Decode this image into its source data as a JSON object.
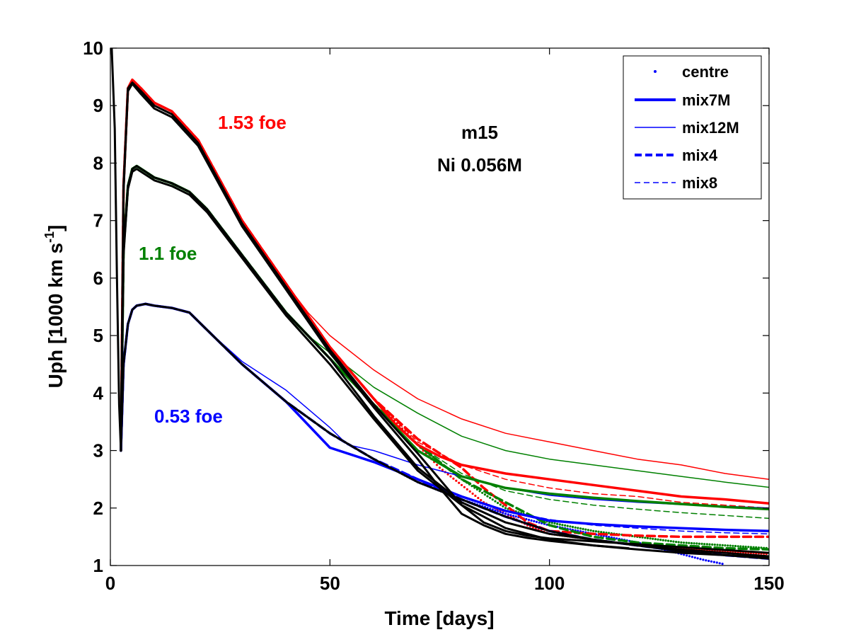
{
  "colors": {
    "red": "#ff0000",
    "green": "#008000",
    "blue": "#0000ff",
    "black": "#000000"
  },
  "chart_data": {
    "type": "line",
    "title": "",
    "xlabel": "Time [days]",
    "ylabel_main": "Uph [1000 km s",
    "ylabel_exp": "-1",
    "ylabel_close": "]",
    "xlim": [
      0,
      150
    ],
    "ylim": [
      1,
      10
    ],
    "xticks": [
      0,
      50,
      100,
      150
    ],
    "yticks": [
      1,
      2,
      3,
      4,
      5,
      6,
      7,
      8,
      9,
      10
    ],
    "annotations": {
      "red": "1.53 foe",
      "green": "1.1 foe",
      "blue": "0.53 foe",
      "model": "m15",
      "nickel": "Ni 0.056M"
    },
    "legend": [
      {
        "label": "centre",
        "style": "dots"
      },
      {
        "label": "mix7M",
        "style": "thick-solid"
      },
      {
        "label": "mix12M",
        "style": "thin-solid"
      },
      {
        "label": "mix4",
        "style": "thick-dashed"
      },
      {
        "label": "mix8",
        "style": "thin-dashed"
      }
    ],
    "series": [
      {
        "name": "1.53 foe centre",
        "color": "red",
        "style": "dots",
        "x": [
          2.4,
          3,
          4,
          5,
          7,
          10,
          14,
          20,
          30,
          40,
          50,
          60,
          70,
          75,
          80,
          85,
          90,
          95,
          100,
          110,
          120,
          130,
          140,
          150
        ],
        "y": [
          3.0,
          7.5,
          9.3,
          9.45,
          9.3,
          9.05,
          8.9,
          8.4,
          7.0,
          5.9,
          4.8,
          3.9,
          3.1,
          2.7,
          2.4,
          2.1,
          1.9,
          1.7,
          1.55,
          1.45,
          1.35,
          1.3,
          1.25,
          1.2
        ]
      },
      {
        "name": "1.53 foe mix7M",
        "color": "red",
        "style": "thick-solid",
        "x": [
          2.4,
          3,
          4,
          5,
          7,
          10,
          14,
          20,
          30,
          40,
          50,
          60,
          65,
          70,
          75,
          80,
          90,
          100,
          110,
          120,
          130,
          140,
          150
        ],
        "y": [
          3.0,
          7.6,
          9.3,
          9.45,
          9.3,
          9.05,
          8.9,
          8.4,
          7.0,
          5.9,
          4.8,
          3.9,
          3.45,
          3.1,
          2.9,
          2.75,
          2.6,
          2.5,
          2.4,
          2.3,
          2.2,
          2.15,
          2.08
        ]
      },
      {
        "name": "1.53 foe mix12M",
        "color": "red",
        "style": "thin-solid",
        "x": [
          2.4,
          3,
          4,
          5,
          7,
          10,
          14,
          20,
          30,
          40,
          45,
          50,
          60,
          70,
          80,
          90,
          100,
          110,
          120,
          130,
          140,
          150
        ],
        "y": [
          3.0,
          7.6,
          9.3,
          9.45,
          9.3,
          9.05,
          8.9,
          8.4,
          7.0,
          5.9,
          5.4,
          5.0,
          4.4,
          3.9,
          3.55,
          3.3,
          3.15,
          3.0,
          2.85,
          2.75,
          2.6,
          2.5
        ]
      },
      {
        "name": "1.53 foe mix4",
        "color": "red",
        "style": "thick-dashed",
        "x": [
          2.4,
          3,
          4,
          5,
          7,
          10,
          14,
          20,
          30,
          40,
          50,
          60,
          70,
          80,
          85,
          90,
          95,
          100,
          110,
          120,
          130,
          140,
          150
        ],
        "y": [
          3.0,
          7.6,
          9.3,
          9.45,
          9.3,
          9.05,
          8.9,
          8.4,
          7.0,
          5.9,
          4.8,
          3.9,
          3.2,
          2.7,
          2.35,
          2.05,
          1.75,
          1.6,
          1.55,
          1.52,
          1.5,
          1.5,
          1.5
        ]
      },
      {
        "name": "1.53 foe mix8",
        "color": "red",
        "style": "thin-dashed",
        "x": [
          2.4,
          3,
          4,
          5,
          7,
          10,
          14,
          20,
          30,
          40,
          50,
          60,
          70,
          80,
          90,
          100,
          110,
          120,
          130,
          140,
          150
        ],
        "y": [
          3.0,
          7.6,
          9.3,
          9.45,
          9.3,
          9.05,
          8.9,
          8.4,
          7.0,
          5.9,
          4.8,
          3.9,
          3.15,
          2.75,
          2.5,
          2.35,
          2.25,
          2.2,
          2.1,
          2.05,
          2.0
        ]
      },
      {
        "name": "1.1 foe centre",
        "color": "green",
        "style": "dots",
        "x": [
          2.4,
          3,
          4,
          5,
          6,
          8,
          10,
          14,
          18,
          22,
          30,
          40,
          50,
          60,
          70,
          80,
          90,
          100,
          110,
          120,
          130,
          140,
          150
        ],
        "y": [
          3.0,
          6.5,
          7.6,
          7.9,
          7.95,
          7.85,
          7.75,
          7.65,
          7.5,
          7.2,
          6.4,
          5.4,
          4.6,
          3.8,
          3.1,
          2.5,
          2.0,
          1.75,
          1.6,
          1.5,
          1.4,
          1.35,
          1.3
        ]
      },
      {
        "name": "1.1 foe mix7M",
        "color": "green",
        "style": "thick-solid",
        "x": [
          2.4,
          3,
          4,
          5,
          6,
          8,
          10,
          14,
          18,
          22,
          30,
          40,
          50,
          60,
          70,
          80,
          90,
          100,
          110,
          120,
          130,
          140,
          150
        ],
        "y": [
          3.0,
          6.5,
          7.6,
          7.9,
          7.95,
          7.85,
          7.75,
          7.65,
          7.5,
          7.2,
          6.4,
          5.4,
          4.6,
          3.8,
          3.0,
          2.55,
          2.35,
          2.25,
          2.18,
          2.12,
          2.07,
          2.02,
          1.98
        ]
      },
      {
        "name": "1.1 foe mix12M",
        "color": "green",
        "style": "thin-solid",
        "x": [
          2.4,
          3,
          4,
          5,
          6,
          8,
          10,
          14,
          18,
          22,
          30,
          40,
          45,
          50,
          60,
          70,
          80,
          90,
          100,
          110,
          120,
          130,
          140,
          150
        ],
        "y": [
          3.0,
          6.5,
          7.6,
          7.9,
          7.95,
          7.85,
          7.75,
          7.65,
          7.5,
          7.2,
          6.4,
          5.4,
          5.0,
          4.7,
          4.1,
          3.65,
          3.25,
          3.0,
          2.85,
          2.75,
          2.65,
          2.55,
          2.45,
          2.36
        ]
      },
      {
        "name": "1.1 foe mix4",
        "color": "green",
        "style": "thick-dashed",
        "x": [
          2.4,
          3,
          4,
          5,
          6,
          8,
          10,
          14,
          18,
          22,
          30,
          40,
          50,
          60,
          70,
          80,
          90,
          95,
          100,
          110,
          120,
          130,
          140,
          150
        ],
        "y": [
          3.0,
          6.5,
          7.6,
          7.9,
          7.95,
          7.85,
          7.75,
          7.65,
          7.5,
          7.2,
          6.4,
          5.4,
          4.6,
          3.8,
          3.1,
          2.5,
          2.1,
          1.9,
          1.7,
          1.5,
          1.4,
          1.35,
          1.3,
          1.28
        ]
      },
      {
        "name": "1.1 foe mix8",
        "color": "green",
        "style": "thin-dashed",
        "x": [
          2.4,
          3,
          4,
          5,
          6,
          8,
          10,
          14,
          18,
          22,
          30,
          40,
          50,
          60,
          70,
          80,
          90,
          100,
          110,
          120,
          130,
          140,
          150
        ],
        "y": [
          3.0,
          6.5,
          7.6,
          7.9,
          7.95,
          7.85,
          7.75,
          7.65,
          7.5,
          7.2,
          6.4,
          5.4,
          4.6,
          3.8,
          3.1,
          2.6,
          2.3,
          2.15,
          2.05,
          1.98,
          1.92,
          1.87,
          1.82
        ]
      },
      {
        "name": "0.53 foe centre",
        "color": "blue",
        "style": "dots",
        "x": [
          2.4,
          3,
          4,
          5,
          6,
          8,
          10,
          14,
          18,
          22,
          30,
          40,
          50,
          60,
          70,
          80,
          90,
          100,
          110,
          120,
          125,
          130,
          135,
          140
        ],
        "y": [
          3.0,
          4.5,
          5.2,
          5.45,
          5.52,
          5.55,
          5.52,
          5.48,
          5.4,
          5.1,
          4.5,
          3.85,
          3.3,
          2.85,
          2.45,
          2.15,
          1.9,
          1.7,
          1.55,
          1.4,
          1.3,
          1.2,
          1.1,
          1.02
        ]
      },
      {
        "name": "0.53 foe mix7M",
        "color": "blue",
        "style": "thick-solid",
        "x": [
          2.4,
          3,
          4,
          5,
          6,
          8,
          10,
          14,
          18,
          22,
          30,
          40,
          50,
          60,
          70,
          80,
          90,
          100,
          110,
          120,
          130,
          140,
          150
        ],
        "y": [
          3.0,
          4.5,
          5.2,
          5.45,
          5.52,
          5.55,
          5.52,
          5.48,
          5.4,
          5.1,
          4.5,
          3.85,
          3.05,
          2.8,
          2.5,
          2.2,
          1.95,
          1.78,
          1.72,
          1.68,
          1.65,
          1.62,
          1.6
        ]
      },
      {
        "name": "0.53 foe mix12M",
        "color": "blue",
        "style": "thin-solid",
        "x": [
          2.4,
          3,
          4,
          5,
          6,
          8,
          10,
          14,
          18,
          22,
          30,
          40,
          50,
          54,
          60,
          70,
          80,
          90,
          100,
          110,
          120,
          130,
          140,
          150
        ],
        "y": [
          3.0,
          4.5,
          5.2,
          5.45,
          5.52,
          5.55,
          5.52,
          5.48,
          5.4,
          5.1,
          4.55,
          4.05,
          3.4,
          3.1,
          3.0,
          2.75,
          2.55,
          2.35,
          2.22,
          2.15,
          2.1,
          2.06,
          2.03,
          2.0
        ]
      },
      {
        "name": "0.53 foe mix4",
        "color": "blue",
        "style": "thick-dashed",
        "x": [
          2.4,
          3,
          4,
          5,
          6,
          8,
          10,
          14,
          18,
          22,
          30,
          40,
          50,
          60,
          70,
          80,
          90,
          100,
          110,
          120,
          130,
          140,
          150
        ],
        "y": [
          3.0,
          4.5,
          5.2,
          5.45,
          5.52,
          5.55,
          5.52,
          5.48,
          5.4,
          5.1,
          4.5,
          3.85,
          3.3,
          2.85,
          2.5,
          2.15,
          1.85,
          1.6,
          1.45,
          1.35,
          1.25,
          1.18,
          1.12
        ]
      },
      {
        "name": "0.53 foe mix8",
        "color": "blue",
        "style": "thin-dashed",
        "x": [
          2.4,
          3,
          4,
          5,
          6,
          8,
          10,
          14,
          18,
          22,
          30,
          40,
          50,
          60,
          70,
          80,
          90,
          100,
          110,
          120,
          130,
          140,
          150
        ],
        "y": [
          3.0,
          4.5,
          5.2,
          5.45,
          5.52,
          5.55,
          5.52,
          5.48,
          5.4,
          5.1,
          4.5,
          3.85,
          3.3,
          2.85,
          2.45,
          2.2,
          1.95,
          1.8,
          1.7,
          1.65,
          1.6,
          1.57,
          1.55
        ]
      },
      {
        "name": "1.53 foe black 1",
        "color": "black",
        "style": "thick-solid",
        "x": [
          0.3,
          1,
          1.5,
          2,
          2.4,
          3,
          4,
          5,
          7,
          10,
          14,
          20,
          30,
          40,
          50,
          60,
          70,
          75,
          80,
          85,
          90,
          95,
          100,
          110,
          120,
          130,
          140,
          150
        ],
        "y": [
          10.0,
          8.6,
          6.0,
          3.8,
          3.0,
          7.6,
          9.3,
          9.4,
          9.25,
          9.0,
          8.85,
          8.35,
          6.95,
          5.85,
          4.75,
          3.8,
          2.95,
          2.5,
          2.05,
          1.75,
          1.6,
          1.52,
          1.47,
          1.42,
          1.37,
          1.32,
          1.27,
          1.22
        ]
      },
      {
        "name": "1.53 foe black 2",
        "color": "black",
        "style": "thick-solid",
        "x": [
          2.4,
          3,
          4,
          5,
          7,
          10,
          14,
          20,
          30,
          40,
          50,
          60,
          70,
          75,
          80,
          85,
          90,
          95,
          100,
          110,
          118
        ],
        "y": [
          3.0,
          7.5,
          9.25,
          9.38,
          9.2,
          8.95,
          8.8,
          8.3,
          6.9,
          5.8,
          4.7,
          3.75,
          2.85,
          2.35,
          1.9,
          1.7,
          1.55,
          1.48,
          1.43,
          1.35,
          1.3
        ]
      },
      {
        "name": "1.1 foe black 1",
        "color": "black",
        "style": "thick-solid",
        "x": [
          2.4,
          3,
          4,
          5,
          6,
          8,
          10,
          14,
          18,
          22,
          30,
          40,
          50,
          60,
          70,
          80,
          90,
          100,
          110,
          120,
          130,
          140,
          150
        ],
        "y": [
          3.0,
          6.5,
          7.6,
          7.9,
          7.95,
          7.85,
          7.75,
          7.65,
          7.5,
          7.2,
          6.4,
          5.4,
          4.6,
          3.6,
          2.7,
          2.1,
          1.75,
          1.55,
          1.45,
          1.35,
          1.28,
          1.22,
          1.16
        ]
      },
      {
        "name": "1.1 foe black 2",
        "color": "black",
        "style": "thick-solid",
        "x": [
          2.4,
          3,
          4,
          5,
          6,
          8,
          10,
          14,
          18,
          22,
          30,
          40,
          50,
          60,
          70,
          80,
          90,
          100,
          110,
          120,
          130,
          140,
          150
        ],
        "y": [
          3.0,
          6.4,
          7.55,
          7.85,
          7.9,
          7.8,
          7.7,
          7.6,
          7.45,
          7.15,
          6.35,
          5.35,
          4.5,
          3.55,
          2.65,
          2.05,
          1.65,
          1.45,
          1.35,
          1.28,
          1.22,
          1.18,
          1.14
        ]
      },
      {
        "name": "0.53 foe black",
        "color": "black",
        "style": "thick-solid",
        "x": [
          2.4,
          3,
          4,
          5,
          6,
          8,
          10,
          14,
          18,
          22,
          30,
          40,
          50,
          60,
          70,
          80,
          90,
          100,
          110,
          120,
          130,
          140,
          150
        ],
        "y": [
          3.0,
          4.5,
          5.2,
          5.45,
          5.52,
          5.55,
          5.52,
          5.48,
          5.4,
          5.1,
          4.5,
          3.85,
          3.3,
          2.85,
          2.45,
          2.15,
          1.85,
          1.6,
          1.45,
          1.35,
          1.25,
          1.18,
          1.12
        ]
      }
    ]
  }
}
